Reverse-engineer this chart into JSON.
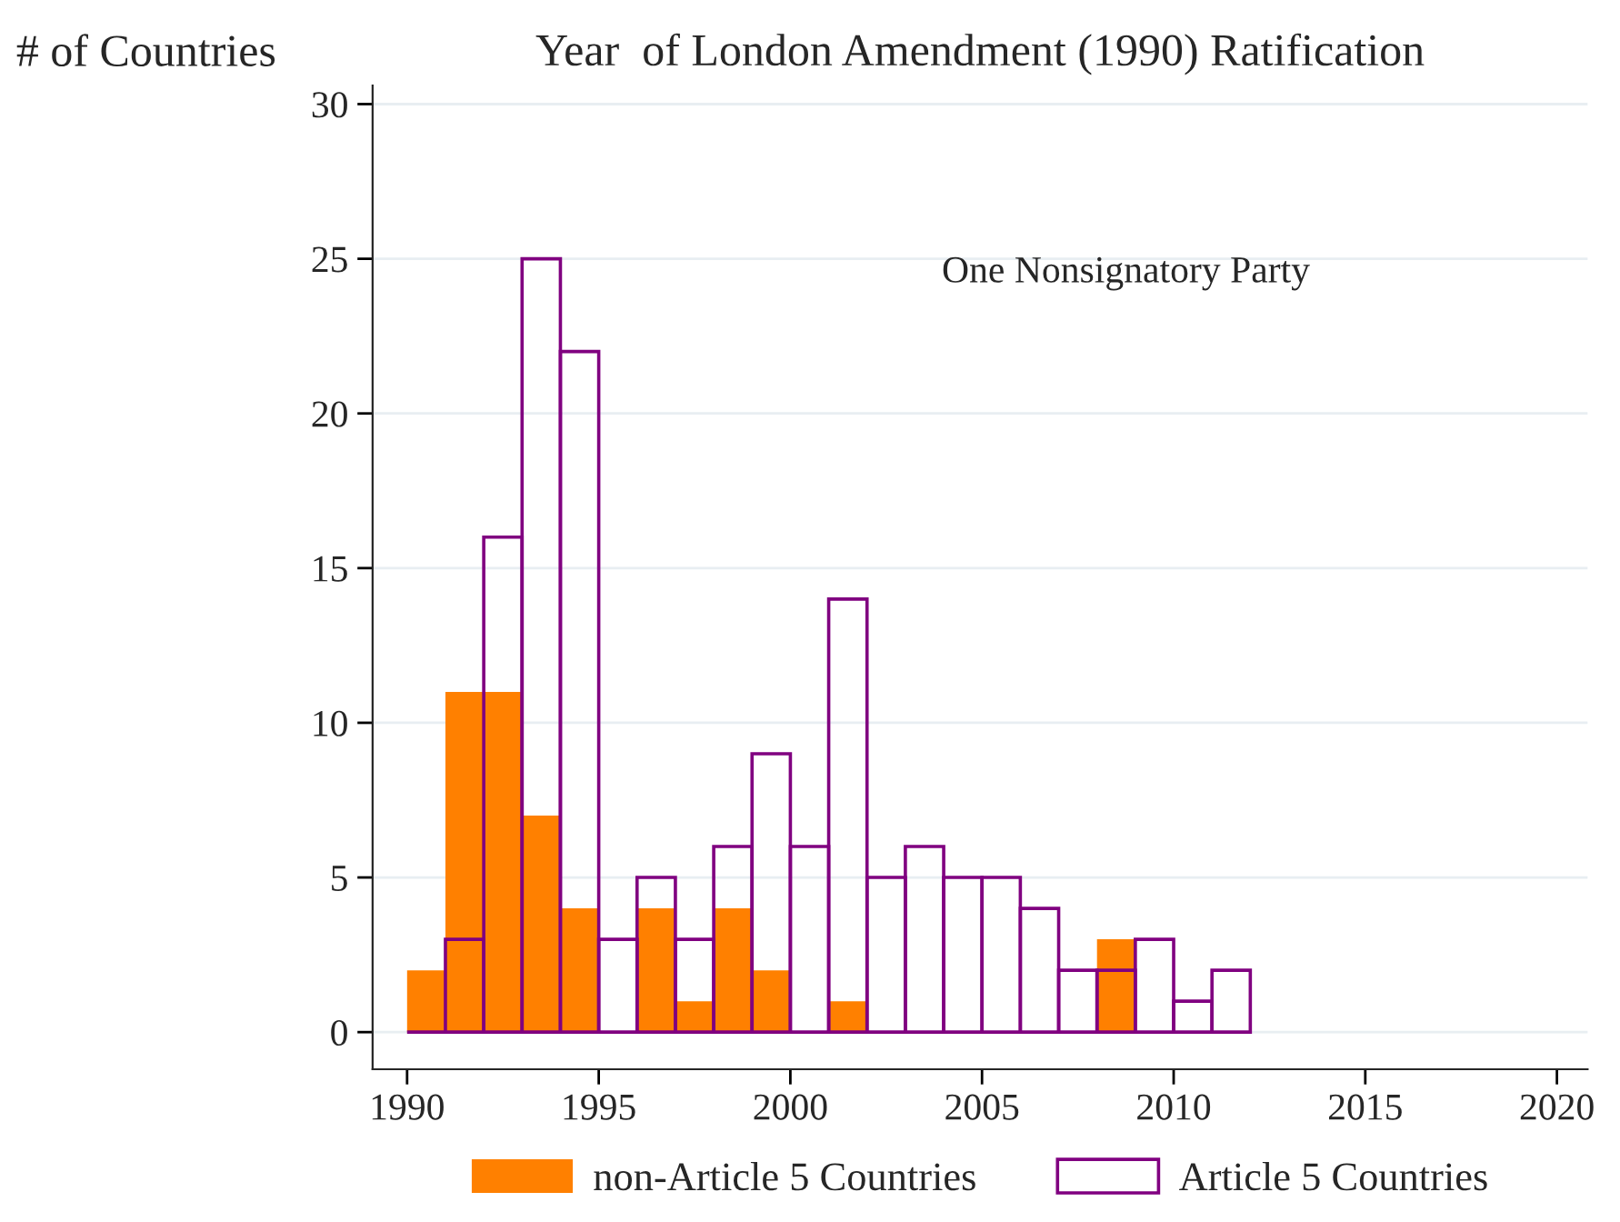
{
  "chart_data": {
    "type": "histogram",
    "title": "Year  of London Amendment (1990) Ratification",
    "ylabel": "# of Countries",
    "annotations": [
      "One Nonsignatory Party"
    ],
    "bins": [
      1990,
      1991,
      1992,
      1993,
      1994,
      1995,
      1996,
      1997,
      1998,
      1999,
      2000,
      2001,
      2002,
      2003,
      2004,
      2005,
      2006,
      2007,
      2008,
      2009,
      2010,
      2011,
      2012
    ],
    "series": [
      {
        "name": "non-Article 5 Countries",
        "color": "#ff8000",
        "values": [
          2,
          11,
          11,
          7,
          4,
          0,
          4,
          1,
          4,
          2,
          0,
          1,
          0,
          0,
          0,
          0,
          0,
          0,
          3,
          0,
          0,
          0
        ]
      },
      {
        "name": "Article 5 Countries",
        "color": "#800080",
        "values": [
          0,
          3,
          16,
          25,
          22,
          3,
          5,
          3,
          6,
          9,
          6,
          14,
          5,
          6,
          5,
          5,
          4,
          2,
          2,
          3,
          1,
          2
        ]
      }
    ],
    "xlim": [
      1989.1,
      2020.8
    ],
    "xticks": [
      1990,
      1995,
      2000,
      2005,
      2010,
      2015,
      2020
    ],
    "ylim": [
      -1.2,
      30.6
    ],
    "yticks": [
      0,
      5,
      10,
      15,
      20,
      25,
      30
    ],
    "grid": "y",
    "legend": "bottom"
  }
}
